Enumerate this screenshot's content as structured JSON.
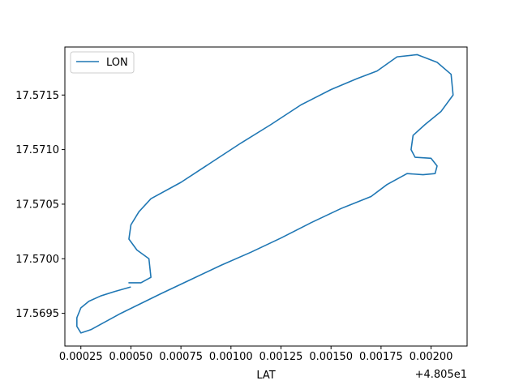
{
  "chart_data": {
    "type": "line",
    "title": "",
    "xlabel": "LAT",
    "ylabel": "",
    "x_offset_label": "+4.805e1",
    "xlim": [
      0.00017,
      0.00218
    ],
    "ylim": [
      17.5692,
      17.57194
    ],
    "x_ticks": [
      0.00025,
      0.0005,
      0.00075,
      0.001,
      0.00125,
      0.0015,
      0.00175,
      0.002
    ],
    "x_tick_labels": [
      "0.00025",
      "0.00050",
      "0.00075",
      "0.00100",
      "0.00125",
      "0.00150",
      "0.00175",
      "0.00200"
    ],
    "y_ticks": [
      17.5695,
      17.57,
      17.5705,
      17.571,
      17.5715
    ],
    "y_tick_labels": [
      "17.5695",
      "17.5700",
      "17.5705",
      "17.5710",
      "17.5715"
    ],
    "grid": false,
    "legend": {
      "position": "top-left",
      "entries": [
        "LON"
      ]
    },
    "series": [
      {
        "name": "LON",
        "color": "#1f77b4",
        "x": [
          0.000497,
          0.00042,
          0.00035,
          0.00029,
          0.00025,
          0.00023,
          0.00023,
          0.00025,
          0.0003,
          0.00036,
          0.00045,
          0.00055,
          0.00065,
          0.0008,
          0.00095,
          0.0011,
          0.00125,
          0.0014,
          0.00155,
          0.0017,
          0.00178,
          0.00188,
          0.00196,
          0.00202,
          0.00203,
          0.002,
          0.00192,
          0.0019,
          0.00191,
          0.00197,
          0.00205,
          0.00211,
          0.0021,
          0.00203,
          0.00193,
          0.00183,
          0.00173,
          0.00163,
          0.0015,
          0.00135,
          0.0012,
          0.00105,
          0.0009,
          0.00075,
          0.0006,
          0.00054,
          0.0005,
          0.00049,
          0.00053,
          0.00059,
          0.0006,
          0.00055,
          0.00049
        ],
        "y": [
          17.56974,
          17.5697,
          17.56966,
          17.56961,
          17.56955,
          17.56946,
          17.56938,
          17.56932,
          17.56935,
          17.56941,
          17.5695,
          17.56959,
          17.56968,
          17.56981,
          17.56994,
          17.57006,
          17.57019,
          17.57033,
          17.57046,
          17.57057,
          17.57068,
          17.57078,
          17.57077,
          17.57078,
          17.57085,
          17.57092,
          17.57093,
          17.571,
          17.57113,
          17.57123,
          17.57135,
          17.5715,
          17.57169,
          17.5718,
          17.57187,
          17.57185,
          17.57172,
          17.57165,
          17.57155,
          17.57141,
          17.57123,
          17.57106,
          17.57088,
          17.5707,
          17.57055,
          17.57043,
          17.57031,
          17.57018,
          17.57008,
          17.57,
          17.56983,
          17.56978,
          17.56978
        ]
      }
    ]
  }
}
